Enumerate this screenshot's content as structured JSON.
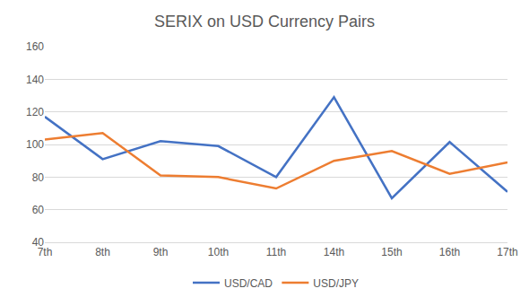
{
  "chart_data": {
    "type": "line",
    "title": "SERIX on USD Currency Pairs",
    "categories": [
      "7th",
      "8th",
      "9th",
      "10th",
      "11th",
      "14th",
      "15th",
      "16th",
      "17th"
    ],
    "series": [
      {
        "name": "USD/CAD",
        "color": "#4472c4",
        "values": [
          117,
          91,
          102,
          99,
          80,
          129,
          67,
          101.5,
          71
        ]
      },
      {
        "name": "USD/JPY",
        "color": "#ed7d31",
        "values": [
          103,
          107,
          81,
          80,
          73,
          90,
          96,
          82,
          89
        ]
      }
    ],
    "ylim": [
      40,
      160
    ],
    "yticks": [
      40,
      60,
      80,
      100,
      120,
      140,
      160
    ],
    "grid": true,
    "legend": "bottom"
  }
}
